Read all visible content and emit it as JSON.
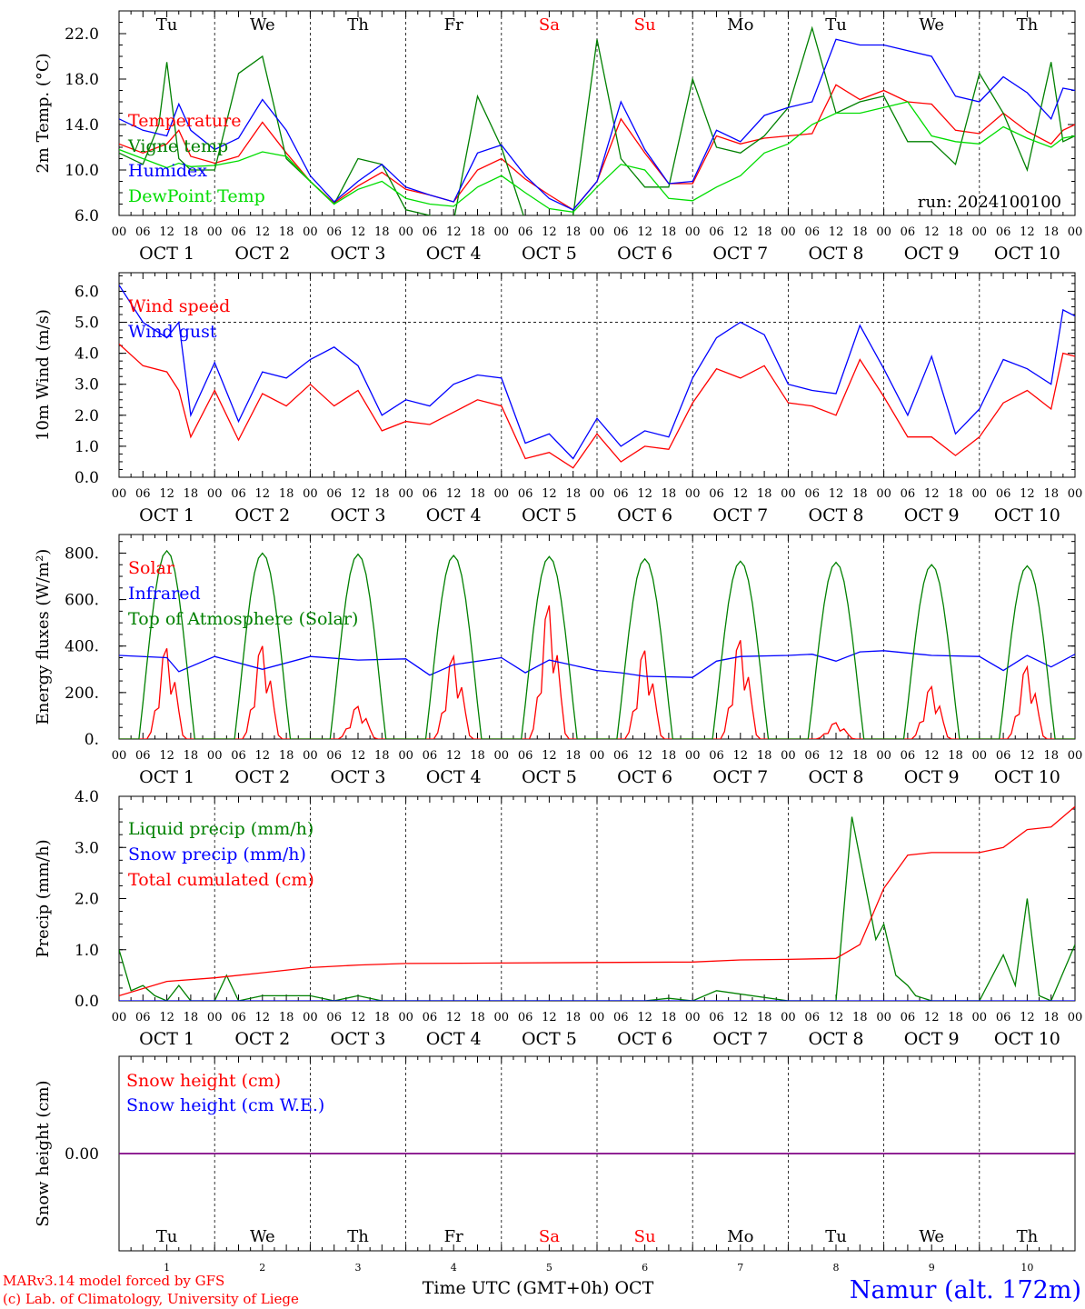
{
  "chart_data": [
    {
      "type": "line",
      "panel": "temperature",
      "ylabel": "2m Temp. (°C)",
      "ylim": [
        6,
        24
      ],
      "yticks": [
        "6.0",
        "10.0",
        "14.0",
        "18.0",
        "22.0"
      ],
      "ytick_values": [
        6,
        10,
        14,
        18,
        22
      ],
      "annotation": "run: 2024100100",
      "series": [
        {
          "name": "Temperature",
          "color": "#ff0000",
          "x": [
            0,
            6,
            12,
            15,
            18,
            24,
            30,
            36,
            42,
            48,
            54,
            60,
            66,
            72,
            78,
            84,
            90,
            96,
            102,
            108,
            114,
            120,
            126,
            132,
            138,
            144,
            150,
            156,
            162,
            168,
            174,
            180,
            186,
            192,
            198,
            204,
            210,
            216,
            222,
            228,
            234,
            237,
            240
          ],
          "values": [
            12.3,
            11.5,
            12.3,
            13.5,
            11.2,
            10.6,
            11.2,
            14.2,
            11.5,
            9.0,
            7.1,
            8.6,
            9.8,
            8.3,
            7.8,
            7.2,
            10.0,
            11.0,
            9.2,
            7.8,
            6.5,
            9.0,
            14.5,
            11.5,
            8.8,
            8.8,
            13.0,
            12.3,
            12.8,
            13.0,
            13.2,
            17.5,
            16.2,
            17.0,
            16.0,
            15.8,
            13.5,
            13.2,
            15.0,
            13.4,
            12.3,
            13.5,
            14.0
          ]
        },
        {
          "name": "Vigne temp",
          "color": "#008000",
          "x": [
            0,
            6,
            10,
            12,
            15,
            18,
            24,
            30,
            36,
            42,
            48,
            54,
            60,
            66,
            72,
            78,
            84,
            90,
            96,
            102,
            108,
            114,
            120,
            126,
            132,
            138,
            144,
            150,
            156,
            162,
            168,
            174,
            180,
            186,
            192,
            198,
            204,
            210,
            216,
            222,
            228,
            234,
            237,
            240
          ],
          "values": [
            11.5,
            10.5,
            14.0,
            19.5,
            11.0,
            10.0,
            10.0,
            18.5,
            20.0,
            11.0,
            9.0,
            7.0,
            11.0,
            10.5,
            6.5,
            6.0,
            5.5,
            16.5,
            12.0,
            5.5,
            5.0,
            6.0,
            21.5,
            11.0,
            8.5,
            8.5,
            18.0,
            12.0,
            11.5,
            13.0,
            15.5,
            22.5,
            15.0,
            16.0,
            16.5,
            12.5,
            12.5,
            10.5,
            18.5,
            15.0,
            10.0,
            19.5,
            12.5,
            13.0
          ]
        },
        {
          "name": "Humidex",
          "color": "#0000ff",
          "x": [
            0,
            6,
            12,
            15,
            18,
            24,
            30,
            36,
            42,
            48,
            54,
            60,
            66,
            72,
            78,
            84,
            90,
            96,
            102,
            108,
            114,
            120,
            126,
            132,
            138,
            144,
            150,
            156,
            162,
            168,
            174,
            180,
            186,
            192,
            198,
            204,
            210,
            216,
            222,
            228,
            234,
            237,
            240
          ],
          "values": [
            14.5,
            13.5,
            13.0,
            15.8,
            13.5,
            11.8,
            12.8,
            16.2,
            13.5,
            9.5,
            7.2,
            9.0,
            10.5,
            8.5,
            7.8,
            7.2,
            11.5,
            12.2,
            9.5,
            7.5,
            6.5,
            9.0,
            16.0,
            11.8,
            8.8,
            9.0,
            13.5,
            12.5,
            14.8,
            15.5,
            16.0,
            21.5,
            21.0,
            21.0,
            20.5,
            20.0,
            16.5,
            16.0,
            18.2,
            16.8,
            14.5,
            17.2,
            17.0
          ]
        },
        {
          "name": "DewPoint Temp",
          "color": "#00dd00",
          "x": [
            0,
            6,
            12,
            15,
            18,
            24,
            30,
            36,
            42,
            48,
            54,
            60,
            66,
            72,
            78,
            84,
            90,
            96,
            102,
            108,
            114,
            120,
            126,
            132,
            138,
            144,
            150,
            156,
            162,
            168,
            174,
            180,
            186,
            192,
            198,
            204,
            210,
            216,
            222,
            228,
            234,
            237,
            240
          ],
          "values": [
            11.8,
            11.0,
            10.2,
            10.6,
            10.3,
            10.4,
            10.8,
            11.6,
            11.2,
            9.0,
            7.0,
            8.3,
            9.0,
            7.5,
            7.0,
            6.8,
            8.5,
            9.5,
            8.0,
            6.6,
            6.3,
            8.5,
            10.5,
            10.0,
            7.5,
            7.3,
            8.5,
            9.5,
            11.5,
            12.3,
            14.0,
            15.0,
            15.0,
            15.5,
            16.0,
            13.0,
            12.5,
            12.3,
            13.8,
            12.8,
            12.0,
            12.8,
            13.0
          ]
        }
      ]
    },
    {
      "type": "line",
      "panel": "wind",
      "ylabel": "10m Wind (m/s)",
      "ylim": [
        0,
        6.6
      ],
      "yticks": [
        "0.0",
        "1.0",
        "2.0",
        "3.0",
        "4.0",
        "5.0",
        "6.0"
      ],
      "ytick_values": [
        0,
        1,
        2,
        3,
        4,
        5,
        6
      ],
      "reference_line": 5.0,
      "series": [
        {
          "name": "Wind speed",
          "color": "#ff0000",
          "x": [
            0,
            6,
            12,
            15,
            18,
            24,
            30,
            36,
            42,
            48,
            54,
            60,
            66,
            72,
            78,
            84,
            90,
            96,
            102,
            108,
            114,
            120,
            126,
            132,
            138,
            144,
            150,
            156,
            162,
            168,
            174,
            180,
            186,
            192,
            198,
            204,
            210,
            216,
            222,
            228,
            234,
            237,
            240
          ],
          "values": [
            4.3,
            3.6,
            3.4,
            2.8,
            1.3,
            2.8,
            1.2,
            2.7,
            2.3,
            3.0,
            2.3,
            2.8,
            1.5,
            1.8,
            1.7,
            2.1,
            2.5,
            2.3,
            0.6,
            0.8,
            0.3,
            1.4,
            0.5,
            1.0,
            0.9,
            2.4,
            3.5,
            3.2,
            3.6,
            2.4,
            2.3,
            2.0,
            3.8,
            2.6,
            1.3,
            1.3,
            0.7,
            1.3,
            2.4,
            2.8,
            2.2,
            4.0,
            3.9
          ]
        },
        {
          "name": "Wind gust",
          "color": "#0000ff",
          "x": [
            0,
            6,
            12,
            15,
            18,
            24,
            30,
            36,
            42,
            48,
            54,
            60,
            66,
            72,
            78,
            84,
            90,
            96,
            102,
            108,
            114,
            120,
            126,
            132,
            138,
            144,
            150,
            156,
            162,
            168,
            174,
            180,
            186,
            192,
            198,
            204,
            210,
            216,
            222,
            228,
            234,
            237,
            240
          ],
          "values": [
            6.2,
            5.0,
            4.5,
            5.0,
            2.0,
            3.7,
            1.8,
            3.4,
            3.2,
            3.8,
            4.2,
            3.6,
            2.0,
            2.5,
            2.3,
            3.0,
            3.3,
            3.2,
            1.1,
            1.4,
            0.6,
            1.9,
            1.0,
            1.5,
            1.3,
            3.2,
            4.5,
            5.0,
            4.6,
            3.0,
            2.8,
            2.7,
            4.9,
            3.5,
            2.0,
            3.9,
            1.4,
            2.2,
            3.8,
            3.5,
            3.0,
            5.4,
            5.2
          ]
        }
      ]
    },
    {
      "type": "line",
      "panel": "energy",
      "ylabel": "Energy fluxes (W/m²)",
      "ylim": [
        0,
        880
      ],
      "yticks": [
        "0.",
        "200.",
        "400.",
        "600.",
        "800."
      ],
      "ytick_values": [
        0,
        200,
        400,
        600,
        800
      ],
      "series": [
        {
          "name": "Solar",
          "color": "#ff0000",
          "peaks": [
            390,
            400,
            140,
            355,
            575,
            380,
            425,
            70,
            225,
            310
          ]
        },
        {
          "name": "Infrared",
          "color": "#0000ff",
          "x": [
            0,
            12,
            15,
            24,
            36,
            48,
            60,
            72,
            78,
            84,
            96,
            102,
            108,
            120,
            126,
            132,
            144,
            150,
            156,
            168,
            174,
            180,
            186,
            192,
            204,
            216,
            222,
            228,
            234,
            240
          ],
          "values": [
            360,
            350,
            290,
            355,
            300,
            355,
            340,
            345,
            275,
            320,
            350,
            285,
            340,
            295,
            285,
            270,
            265,
            335,
            355,
            360,
            365,
            335,
            375,
            380,
            360,
            355,
            295,
            360,
            310,
            365
          ]
        },
        {
          "name": "Top of Atmosphere (Solar)",
          "color": "#008000",
          "peaks": [
            810,
            800,
            795,
            790,
            785,
            775,
            765,
            760,
            750,
            745
          ]
        }
      ]
    },
    {
      "type": "line",
      "panel": "precip",
      "ylabel": "Precip (mm/h)",
      "ylim": [
        0,
        4.0
      ],
      "yticks": [
        "0.0",
        "1.0",
        "2.0",
        "3.0",
        "4.0"
      ],
      "ytick_values": [
        0,
        1,
        2,
        3,
        4
      ],
      "series": [
        {
          "name": "Liquid precip (mm/h)",
          "color": "#008000",
          "x": [
            0,
            3,
            6,
            9,
            12,
            15,
            18,
            24,
            27,
            30,
            36,
            48,
            54,
            60,
            66,
            72,
            120,
            132,
            138,
            144,
            150,
            168,
            174,
            180,
            184,
            186,
            190,
            192,
            195,
            198,
            200,
            204,
            210,
            216,
            222,
            225,
            228,
            231,
            234,
            240
          ],
          "values": [
            1.0,
            0.2,
            0.3,
            0.1,
            0.0,
            0.3,
            0.0,
            0.0,
            0.5,
            0.0,
            0.1,
            0.1,
            0.0,
            0.1,
            0.0,
            0.0,
            0.0,
            0.0,
            0.05,
            0.0,
            0.2,
            0.0,
            0.0,
            0.0,
            3.6,
            2.8,
            1.2,
            1.5,
            0.5,
            0.3,
            0.1,
            0.0,
            0.0,
            0.0,
            0.9,
            0.3,
            2.0,
            0.1,
            0.0,
            1.1
          ]
        },
        {
          "name": "Snow precip (mm/h)",
          "color": "#0000ff",
          "x": [
            0,
            240
          ],
          "values": [
            0,
            0
          ]
        },
        {
          "name": "Total cumulated (cm)",
          "color": "#ff0000",
          "x": [
            0,
            12,
            24,
            36,
            48,
            60,
            72,
            96,
            120,
            144,
            156,
            168,
            180,
            186,
            192,
            198,
            204,
            216,
            222,
            228,
            234,
            240
          ],
          "values": [
            0.1,
            0.38,
            0.45,
            0.55,
            0.65,
            0.7,
            0.73,
            0.74,
            0.75,
            0.76,
            0.8,
            0.81,
            0.83,
            1.1,
            2.2,
            2.85,
            2.9,
            2.9,
            3.0,
            3.35,
            3.4,
            3.8
          ]
        }
      ]
    },
    {
      "type": "line",
      "panel": "snow",
      "ylabel": "Snow height (cm)",
      "ylim": [
        -1,
        1
      ],
      "yticks": [
        "0.00"
      ],
      "ytick_values": [
        0
      ],
      "series": [
        {
          "name": "Snow height (cm)",
          "color": "#ff0000",
          "x": [
            0,
            240
          ],
          "values": [
            0,
            0
          ]
        },
        {
          "name": "Snow height (cm W.E.)",
          "color": "#0000ff",
          "x": [
            0,
            240
          ],
          "values": [
            0,
            0
          ]
        }
      ]
    }
  ],
  "days": [
    "Tu",
    "We",
    "Th",
    "Fr",
    "Sa",
    "Su",
    "Mo",
    "Tu",
    "We",
    "Th"
  ],
  "day_colors": [
    "#000000",
    "#000000",
    "#000000",
    "#000000",
    "#ff0000",
    "#ff0000",
    "#000000",
    "#000000",
    "#000000",
    "#000000"
  ],
  "hour_ticks": [
    "00",
    "06",
    "12",
    "18"
  ],
  "hour_end": "00",
  "date_labels": [
    "OCT  1",
    "OCT  2",
    "OCT  3",
    "OCT  4",
    "OCT  5",
    "OCT  6",
    "OCT  7",
    "OCT  8",
    "OCT  9",
    "OCT 10"
  ],
  "bottom_day_numbers": [
    "1",
    "2",
    "3",
    "4",
    "5",
    "6",
    "7",
    "8",
    "9",
    "10"
  ],
  "xlabel": "Time UTC (GMT+0h) OCT",
  "footer": {
    "credit_line1": "MARv3.14 model forced by GFS",
    "credit_line2": "(c) Lab. of Climatology, University of Liege",
    "station": "Namur (alt. 172m)"
  }
}
